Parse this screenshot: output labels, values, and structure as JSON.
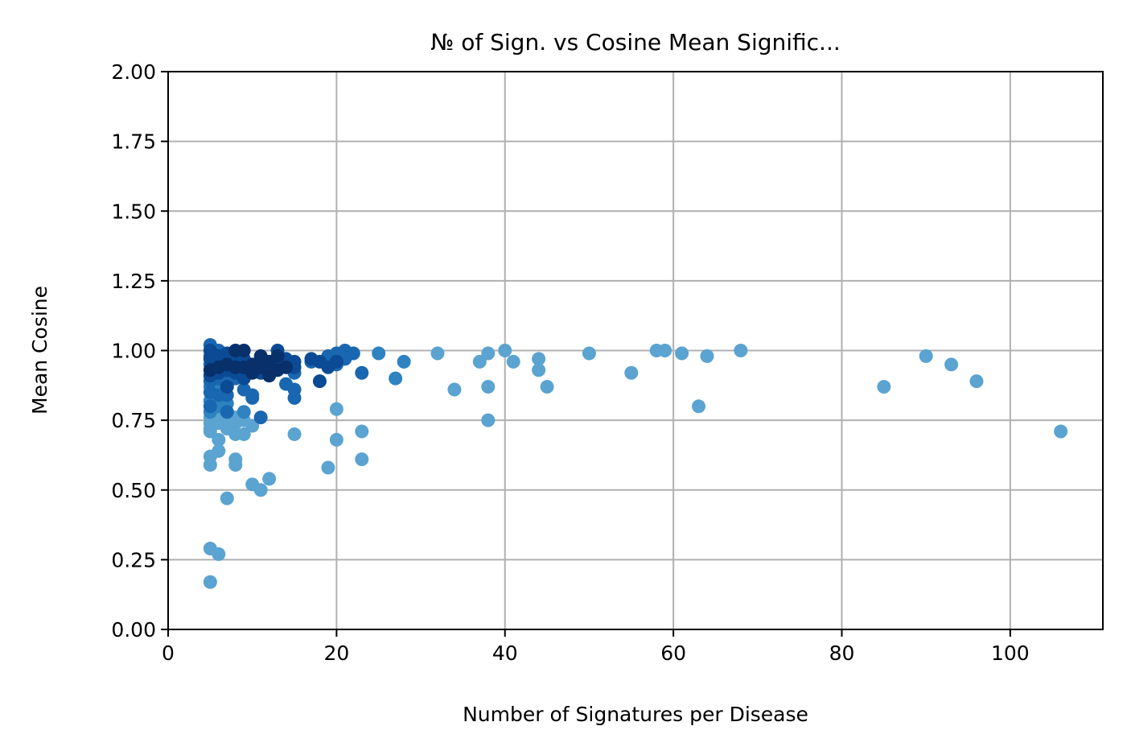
{
  "chart_data": {
    "type": "scatter",
    "title": "№ of Sign. vs Cosine Mean Signific...",
    "xlabel": "Number of Signatures per Disease",
    "ylabel": "Mean Cosine",
    "xlim": [
      0,
      111
    ],
    "ylim": [
      0,
      2
    ],
    "xticks": [
      0,
      20,
      40,
      60,
      80,
      100
    ],
    "yticks": [
      0,
      0.25,
      0.5,
      0.75,
      1.0,
      1.25,
      1.5,
      1.75,
      2.0
    ],
    "xtick_labels": [
      "0",
      "20",
      "40",
      "60",
      "80",
      "100"
    ],
    "ytick_labels": [
      "0.00",
      "0.25",
      "0.50",
      "0.75",
      "1.00",
      "1.25",
      "1.50",
      "1.75",
      "2.00"
    ],
    "grid": true,
    "colors": {
      "darkest": "#08306b",
      "dark": "#0b4a94",
      "mid": "#1967b0",
      "medium": "#2e83c0",
      "light": "#5ba3d0",
      "grid": "#b0b0b0"
    },
    "points": [
      {
        "x": 5,
        "y": 1.02,
        "c": "mid"
      },
      {
        "x": 5,
        "y": 1.0,
        "c": "dark"
      },
      {
        "x": 5,
        "y": 0.98,
        "c": "mid"
      },
      {
        "x": 5,
        "y": 0.97,
        "c": "dark"
      },
      {
        "x": 5,
        "y": 0.95,
        "c": "mid"
      },
      {
        "x": 5,
        "y": 0.93,
        "c": "darkest"
      },
      {
        "x": 5,
        "y": 0.91,
        "c": "dark"
      },
      {
        "x": 5,
        "y": 0.89,
        "c": "mid"
      },
      {
        "x": 5,
        "y": 0.87,
        "c": "medium"
      },
      {
        "x": 5,
        "y": 0.85,
        "c": "mid"
      },
      {
        "x": 5,
        "y": 0.82,
        "c": "medium"
      },
      {
        "x": 5,
        "y": 0.8,
        "c": "mid"
      },
      {
        "x": 5,
        "y": 0.78,
        "c": "medium"
      },
      {
        "x": 5,
        "y": 0.76,
        "c": "light"
      },
      {
        "x": 5,
        "y": 0.74,
        "c": "light"
      },
      {
        "x": 5,
        "y": 0.72,
        "c": "light"
      },
      {
        "x": 5,
        "y": 0.71,
        "c": "light"
      },
      {
        "x": 5,
        "y": 0.62,
        "c": "light"
      },
      {
        "x": 5,
        "y": 0.59,
        "c": "light"
      },
      {
        "x": 5,
        "y": 0.29,
        "c": "light"
      },
      {
        "x": 5,
        "y": 0.17,
        "c": "light"
      },
      {
        "x": 6,
        "y": 1.0,
        "c": "mid"
      },
      {
        "x": 6,
        "y": 0.98,
        "c": "dark"
      },
      {
        "x": 6,
        "y": 0.96,
        "c": "mid"
      },
      {
        "x": 6,
        "y": 0.94,
        "c": "darkest"
      },
      {
        "x": 6,
        "y": 0.92,
        "c": "dark"
      },
      {
        "x": 6,
        "y": 0.9,
        "c": "mid"
      },
      {
        "x": 6,
        "y": 0.87,
        "c": "medium"
      },
      {
        "x": 6,
        "y": 0.84,
        "c": "mid"
      },
      {
        "x": 6,
        "y": 0.8,
        "c": "medium"
      },
      {
        "x": 6,
        "y": 0.77,
        "c": "light"
      },
      {
        "x": 6,
        "y": 0.74,
        "c": "light"
      },
      {
        "x": 6,
        "y": 0.68,
        "c": "light"
      },
      {
        "x": 6,
        "y": 0.64,
        "c": "light"
      },
      {
        "x": 6,
        "y": 0.27,
        "c": "light"
      },
      {
        "x": 7,
        "y": 0.99,
        "c": "dark"
      },
      {
        "x": 7,
        "y": 0.97,
        "c": "mid"
      },
      {
        "x": 7,
        "y": 0.95,
        "c": "darkest"
      },
      {
        "x": 7,
        "y": 0.93,
        "c": "dark"
      },
      {
        "x": 7,
        "y": 0.9,
        "c": "mid"
      },
      {
        "x": 7,
        "y": 0.87,
        "c": "dark"
      },
      {
        "x": 7,
        "y": 0.84,
        "c": "mid"
      },
      {
        "x": 7,
        "y": 0.81,
        "c": "medium"
      },
      {
        "x": 7,
        "y": 0.78,
        "c": "mid"
      },
      {
        "x": 7,
        "y": 0.75,
        "c": "light"
      },
      {
        "x": 7,
        "y": 0.72,
        "c": "light"
      },
      {
        "x": 7,
        "y": 0.47,
        "c": "light"
      },
      {
        "x": 8,
        "y": 1.0,
        "c": "darkest"
      },
      {
        "x": 8,
        "y": 0.98,
        "c": "dark"
      },
      {
        "x": 8,
        "y": 0.96,
        "c": "mid"
      },
      {
        "x": 8,
        "y": 0.94,
        "c": "darkest"
      },
      {
        "x": 8,
        "y": 0.92,
        "c": "dark"
      },
      {
        "x": 8,
        "y": 0.9,
        "c": "mid"
      },
      {
        "x": 8,
        "y": 0.76,
        "c": "light"
      },
      {
        "x": 8,
        "y": 0.74,
        "c": "light"
      },
      {
        "x": 8,
        "y": 0.7,
        "c": "light"
      },
      {
        "x": 8,
        "y": 0.61,
        "c": "light"
      },
      {
        "x": 8,
        "y": 0.59,
        "c": "light"
      },
      {
        "x": 9,
        "y": 1.0,
        "c": "darkest"
      },
      {
        "x": 9,
        "y": 0.97,
        "c": "dark"
      },
      {
        "x": 9,
        "y": 0.94,
        "c": "darkest"
      },
      {
        "x": 9,
        "y": 0.9,
        "c": "dark"
      },
      {
        "x": 9,
        "y": 0.86,
        "c": "mid"
      },
      {
        "x": 9,
        "y": 0.78,
        "c": "medium"
      },
      {
        "x": 9,
        "y": 0.75,
        "c": "light"
      },
      {
        "x": 9,
        "y": 0.7,
        "c": "light"
      },
      {
        "x": 10,
        "y": 0.95,
        "c": "darkest"
      },
      {
        "x": 10,
        "y": 0.93,
        "c": "dark"
      },
      {
        "x": 10,
        "y": 0.92,
        "c": "darkest"
      },
      {
        "x": 10,
        "y": 0.84,
        "c": "mid"
      },
      {
        "x": 10,
        "y": 0.83,
        "c": "mid"
      },
      {
        "x": 10,
        "y": 0.73,
        "c": "light"
      },
      {
        "x": 10,
        "y": 0.52,
        "c": "light"
      },
      {
        "x": 11,
        "y": 0.98,
        "c": "darkest"
      },
      {
        "x": 11,
        "y": 0.96,
        "c": "dark"
      },
      {
        "x": 11,
        "y": 0.94,
        "c": "darkest"
      },
      {
        "x": 11,
        "y": 0.92,
        "c": "dark"
      },
      {
        "x": 11,
        "y": 0.76,
        "c": "mid"
      },
      {
        "x": 11,
        "y": 0.5,
        "c": "light"
      },
      {
        "x": 12,
        "y": 0.96,
        "c": "darkest"
      },
      {
        "x": 12,
        "y": 0.93,
        "c": "dark"
      },
      {
        "x": 12,
        "y": 0.91,
        "c": "darkest"
      },
      {
        "x": 12,
        "y": 0.54,
        "c": "light"
      },
      {
        "x": 13,
        "y": 1.0,
        "c": "dark"
      },
      {
        "x": 13,
        "y": 0.98,
        "c": "darkest"
      },
      {
        "x": 13,
        "y": 0.96,
        "c": "dark"
      },
      {
        "x": 13,
        "y": 0.93,
        "c": "darkest"
      },
      {
        "x": 14,
        "y": 0.97,
        "c": "dark"
      },
      {
        "x": 14,
        "y": 0.94,
        "c": "darkest"
      },
      {
        "x": 14,
        "y": 0.88,
        "c": "mid"
      },
      {
        "x": 15,
        "y": 0.96,
        "c": "dark"
      },
      {
        "x": 15,
        "y": 0.94,
        "c": "dark"
      },
      {
        "x": 15,
        "y": 0.92,
        "c": "mid"
      },
      {
        "x": 15,
        "y": 0.86,
        "c": "mid"
      },
      {
        "x": 15,
        "y": 0.83,
        "c": "mid"
      },
      {
        "x": 15,
        "y": 0.7,
        "c": "light"
      },
      {
        "x": 17,
        "y": 0.97,
        "c": "dark"
      },
      {
        "x": 17,
        "y": 0.96,
        "c": "mid"
      },
      {
        "x": 18,
        "y": 0.96,
        "c": "dark"
      },
      {
        "x": 18,
        "y": 0.89,
        "c": "dark"
      },
      {
        "x": 19,
        "y": 0.98,
        "c": "mid"
      },
      {
        "x": 19,
        "y": 0.94,
        "c": "dark"
      },
      {
        "x": 19,
        "y": 0.58,
        "c": "light"
      },
      {
        "x": 20,
        "y": 0.99,
        "c": "mid"
      },
      {
        "x": 20,
        "y": 0.96,
        "c": "dark"
      },
      {
        "x": 20,
        "y": 0.95,
        "c": "mid"
      },
      {
        "x": 20,
        "y": 0.79,
        "c": "light"
      },
      {
        "x": 20,
        "y": 0.68,
        "c": "light"
      },
      {
        "x": 21,
        "y": 1.0,
        "c": "mid"
      },
      {
        "x": 21,
        "y": 0.97,
        "c": "mid"
      },
      {
        "x": 22,
        "y": 0.99,
        "c": "mid"
      },
      {
        "x": 23,
        "y": 0.92,
        "c": "mid"
      },
      {
        "x": 23,
        "y": 0.71,
        "c": "light"
      },
      {
        "x": 23,
        "y": 0.61,
        "c": "light"
      },
      {
        "x": 25,
        "y": 0.99,
        "c": "medium"
      },
      {
        "x": 27,
        "y": 0.9,
        "c": "medium"
      },
      {
        "x": 28,
        "y": 0.96,
        "c": "medium"
      },
      {
        "x": 32,
        "y": 0.99,
        "c": "light"
      },
      {
        "x": 34,
        "y": 0.86,
        "c": "light"
      },
      {
        "x": 37,
        "y": 0.96,
        "c": "light"
      },
      {
        "x": 38,
        "y": 0.99,
        "c": "light"
      },
      {
        "x": 38,
        "y": 0.87,
        "c": "light"
      },
      {
        "x": 38,
        "y": 0.75,
        "c": "light"
      },
      {
        "x": 40,
        "y": 1.0,
        "c": "light"
      },
      {
        "x": 41,
        "y": 0.96,
        "c": "light"
      },
      {
        "x": 44,
        "y": 0.97,
        "c": "light"
      },
      {
        "x": 44,
        "y": 0.93,
        "c": "light"
      },
      {
        "x": 45,
        "y": 0.87,
        "c": "light"
      },
      {
        "x": 50,
        "y": 0.99,
        "c": "light"
      },
      {
        "x": 55,
        "y": 0.92,
        "c": "light"
      },
      {
        "x": 58,
        "y": 1.0,
        "c": "light"
      },
      {
        "x": 59,
        "y": 1.0,
        "c": "light"
      },
      {
        "x": 61,
        "y": 0.99,
        "c": "light"
      },
      {
        "x": 63,
        "y": 0.8,
        "c": "light"
      },
      {
        "x": 64,
        "y": 0.98,
        "c": "light"
      },
      {
        "x": 68,
        "y": 1.0,
        "c": "light"
      },
      {
        "x": 85,
        "y": 0.87,
        "c": "light"
      },
      {
        "x": 90,
        "y": 0.98,
        "c": "light"
      },
      {
        "x": 93,
        "y": 0.95,
        "c": "light"
      },
      {
        "x": 96,
        "y": 0.89,
        "c": "light"
      },
      {
        "x": 106,
        "y": 0.71,
        "c": "light"
      }
    ]
  }
}
